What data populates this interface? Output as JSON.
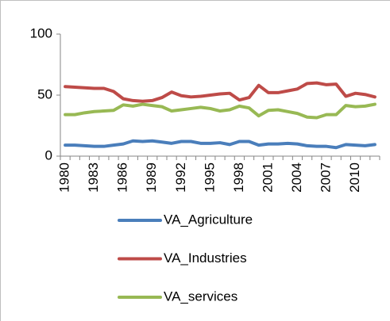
{
  "chart_data": {
    "type": "line",
    "categories": [
      "1980",
      null,
      null,
      "1983",
      null,
      null,
      "1986",
      null,
      null,
      "1989",
      null,
      null,
      "1992",
      null,
      null,
      "1995",
      null,
      null,
      "1998",
      null,
      null,
      "2001",
      null,
      null,
      "2004",
      null,
      null,
      "2007",
      null,
      null,
      "2010",
      null,
      null
    ],
    "series": [
      {
        "name": "VA_Agriculture",
        "color": "#4a7ebb",
        "values": [
          9,
          9,
          8.5,
          8,
          8,
          9,
          10,
          12.5,
          12,
          12.5,
          11.5,
          10.5,
          12,
          12,
          10.5,
          10.5,
          11,
          9.5,
          12,
          12,
          9,
          10,
          10,
          10.5,
          10,
          8.5,
          8,
          8,
          7,
          9.5,
          9,
          8.5,
          9.5
        ]
      },
      {
        "name": "VA_Industries",
        "color": "#be4b48",
        "values": [
          57,
          56.5,
          56,
          55.5,
          55.5,
          53,
          47,
          45.5,
          45,
          45.5,
          48,
          52.5,
          49.5,
          48.5,
          49,
          50,
          51,
          51.5,
          46,
          48,
          58,
          52,
          52,
          53.5,
          55,
          59.5,
          60,
          58.5,
          59,
          49,
          51.5,
          50.5,
          48.5
        ]
      },
      {
        "name": "VA_services",
        "color": "#98b954",
        "values": [
          34,
          34,
          35.5,
          36.5,
          37,
          37.5,
          42,
          41,
          42.5,
          41.5,
          40.5,
          37,
          38,
          39,
          40,
          39,
          37,
          38,
          41,
          39.5,
          33,
          37.5,
          38,
          36.5,
          35,
          32,
          31.5,
          34,
          34,
          41.5,
          40.5,
          41,
          42.5
        ]
      }
    ],
    "ylim": [
      0,
      100
    ],
    "yticks": [
      0,
      50,
      100
    ],
    "grid": false,
    "legend": "bottom"
  }
}
